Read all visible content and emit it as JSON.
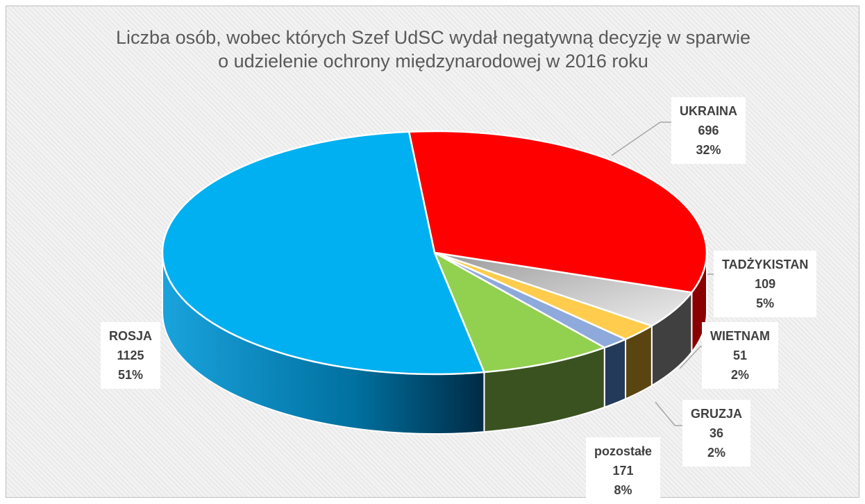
{
  "chart_data": {
    "type": "pie",
    "title": "Liczba osób, wobec których Szef UdSC wydał negatywną decyzję w sparwie o udzielenie ochrony międzynarodowej w 2016 roku",
    "title_lines": [
      "Liczba osób, wobec których Szef UdSC wydał negatywną decyzję w sparwie",
      "o udzielenie ochrony międzynarodowej w 2016 roku"
    ],
    "three_d": true,
    "slices": [
      {
        "label": "UKRAINA",
        "value": 696,
        "value_text": "696",
        "percent_text": "32%",
        "color": "#ff0000",
        "side_color": "#8a0000"
      },
      {
        "label": "TADŻYKISTAN",
        "value": 109,
        "value_text": "109",
        "percent_text": "5%",
        "color": "#c0c0c0",
        "side_color": "#404040"
      },
      {
        "label": "WIETNAM",
        "value": 51,
        "value_text": "51",
        "percent_text": "2%",
        "color": "#ffcc4d",
        "side_color": "#5a4510"
      },
      {
        "label": "GRUZJA",
        "value": 36,
        "value_text": "36",
        "percent_text": "2%",
        "color": "#8ea9db",
        "side_color": "#243a5a"
      },
      {
        "label": "pozostałe",
        "value": 171,
        "value_text": "171",
        "percent_text": "8%",
        "color": "#92d050",
        "side_color": "#3a5220"
      },
      {
        "label": "ROSJA",
        "value": 1125,
        "value_text": "1125",
        "percent_text": "51%",
        "color": "#00b0f0",
        "side_color": "#0086c0"
      }
    ]
  }
}
